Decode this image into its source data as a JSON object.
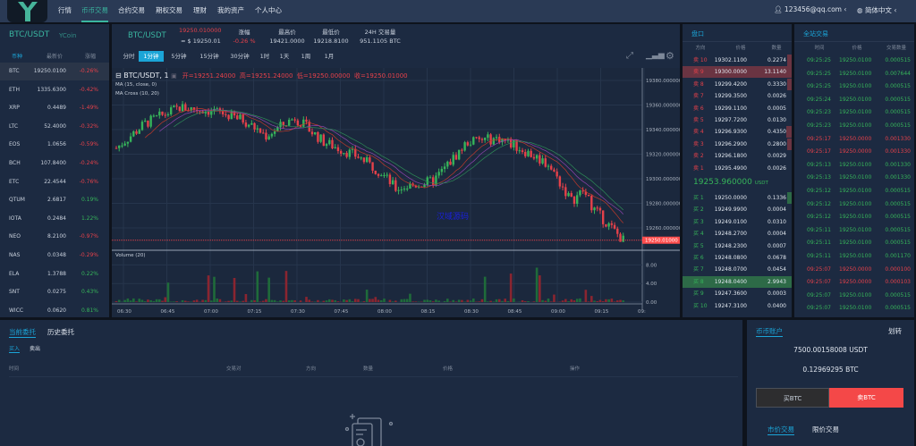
{
  "nav": {
    "logo_text": "YCoin",
    "items": [
      "行情",
      "币币交易",
      "合约交易",
      "期权交易",
      "理财",
      "我的资产",
      "个人中心"
    ],
    "active": 1,
    "user": "123456@qq.com",
    "language": "简体中文"
  },
  "market": {
    "title": "BTC/USDT",
    "headers": [
      "币种",
      "最新价",
      "涨幅"
    ],
    "rows": [
      [
        "BTC",
        "19250.0100",
        "-0.26%"
      ],
      [
        "ETH",
        "1335.6300",
        "-0.42%"
      ],
      [
        "XRP",
        "0.4489",
        "-1.49%"
      ],
      [
        "LTC",
        "52.4000",
        "-0.32%"
      ],
      [
        "EOS",
        "1.0656",
        "-0.59%"
      ],
      [
        "BCH",
        "107.8400",
        "-0.24%"
      ],
      [
        "ETC",
        "22.4544",
        "-0.76%"
      ],
      [
        "QTUM",
        "2.6817",
        "0.19%"
      ],
      [
        "IOTA",
        "0.2484",
        "1.22%"
      ],
      [
        "NEO",
        "8.2100",
        "-0.97%"
      ],
      [
        "NAS",
        "0.0348",
        "-0.29%"
      ],
      [
        "ELA",
        "1.3788",
        "0.22%"
      ],
      [
        "SNT",
        "0.0275",
        "0.43%"
      ],
      [
        "WICC",
        "0.0620",
        "0.81%"
      ]
    ]
  },
  "ticker": {
    "pair": "BTC/USDT",
    "price": "19250.010000",
    "usd": "≈ $ 19250.01",
    "change_label": "涨幅",
    "change": "-0.26 %",
    "high_label": "最高价",
    "high": "19421.0000",
    "low_label": "最低价",
    "low": "19218.8100",
    "vol_label": "24H 交易量",
    "vol": "951.1105 BTC"
  },
  "intervals": {
    "items": [
      "分时",
      "1分钟",
      "5分钟",
      "15分钟",
      "30分钟",
      "1时",
      "1天",
      "1周",
      "1月"
    ],
    "active": 1
  },
  "chart": {
    "symbol": "BTC/USDT, 1",
    "ohlc": "开=19251.24000  高=19251.24000  低=19250.00000  收=19250.01000",
    "ma": "MA (15, close, 0)",
    "ma_cross": "MA Cross (10, 20)",
    "volume_label": "Volume (20)",
    "watermark": "汉域源码",
    "last_price": "19250.01000",
    "price_ticks": [
      "19380.000000",
      "19360.000000",
      "19340.000000",
      "19320.000000",
      "19300.000000",
      "19280.000000",
      "19260.000000"
    ],
    "volume_ticks": [
      "8.00",
      "4.00",
      "0.00"
    ],
    "time_ticks": [
      "06:30",
      "06:45",
      "07:00",
      "07:15",
      "07:30",
      "07:45",
      "08:00",
      "08:15",
      "08:30",
      "08:45",
      "09:00",
      "09:15",
      "09:"
    ],
    "colors": {
      "up": "#36b45a",
      "down": "#e5414a"
    }
  },
  "orderbook": {
    "title": "盘口",
    "headers": [
      "方向",
      "价格",
      "数量"
    ],
    "asks": [
      [
        "卖 10",
        "19302.1100",
        "0.2274"
      ],
      [
        "卖 9",
        "19300.0000",
        "13.1140"
      ],
      [
        "卖 8",
        "19299.4200",
        "0.3330"
      ],
      [
        "卖 7",
        "19299.3500",
        "0.0026"
      ],
      [
        "卖 6",
        "19299.1100",
        "0.0005"
      ],
      [
        "卖 5",
        "19297.7200",
        "0.0130"
      ],
      [
        "卖 4",
        "19296.9300",
        "0.4350"
      ],
      [
        "卖 3",
        "19296.2900",
        "0.2800"
      ],
      [
        "卖 2",
        "19296.1800",
        "0.0029"
      ],
      [
        "卖 1",
        "19295.4900",
        "0.0026"
      ]
    ],
    "mid": "19253.960000",
    "mid_unit": "USDT",
    "bids": [
      [
        "买 1",
        "19250.0000",
        "0.1336"
      ],
      [
        "买 2",
        "19249.9900",
        "0.0004"
      ],
      [
        "买 3",
        "19249.0100",
        "0.0310"
      ],
      [
        "买 4",
        "19248.2700",
        "0.0004"
      ],
      [
        "买 5",
        "19248.2300",
        "0.0007"
      ],
      [
        "买 6",
        "19248.0800",
        "0.0678"
      ],
      [
        "买 7",
        "19248.0700",
        "0.0454"
      ],
      [
        "买 8",
        "19248.0400",
        "2.9943"
      ],
      [
        "买 9",
        "19247.3600",
        "0.0003"
      ],
      [
        "买 10",
        "19247.3100",
        "0.0400"
      ]
    ]
  },
  "trades": {
    "title": "全站交易",
    "headers": [
      "时间",
      "价格",
      "交易数量"
    ],
    "rows": [
      [
        "09:25:25",
        "19250.0100",
        "0.000515",
        "buy"
      ],
      [
        "09:25:25",
        "19250.0100",
        "0.007644",
        "buy"
      ],
      [
        "09:25:25",
        "19250.0100",
        "0.000515",
        "buy"
      ],
      [
        "09:25:24",
        "19250.0100",
        "0.000515",
        "buy"
      ],
      [
        "09:25:23",
        "19250.0100",
        "0.000515",
        "buy"
      ],
      [
        "09:25:23",
        "19250.0100",
        "0.000515",
        "buy"
      ],
      [
        "09:25:17",
        "19250.0000",
        "0.001330",
        "sell"
      ],
      [
        "09:25:17",
        "19250.0000",
        "0.001330",
        "sell"
      ],
      [
        "09:25:13",
        "19250.0100",
        "0.001330",
        "buy"
      ],
      [
        "09:25:13",
        "19250.0100",
        "0.001330",
        "buy"
      ],
      [
        "09:25:12",
        "19250.0100",
        "0.000515",
        "buy"
      ],
      [
        "09:25:12",
        "19250.0100",
        "0.000515",
        "buy"
      ],
      [
        "09:25:12",
        "19250.0100",
        "0.000515",
        "buy"
      ],
      [
        "09:25:11",
        "19250.0100",
        "0.000515",
        "buy"
      ],
      [
        "09:25:11",
        "19250.0100",
        "0.000515",
        "buy"
      ],
      [
        "09:25:11",
        "19250.0100",
        "0.001170",
        "buy"
      ],
      [
        "09:25:07",
        "19250.0000",
        "0.000100",
        "sell"
      ],
      [
        "09:25:07",
        "19250.0000",
        "0.000103",
        "sell"
      ],
      [
        "09:25:07",
        "19250.0100",
        "0.000515",
        "buy"
      ],
      [
        "09:25:07",
        "19250.0100",
        "0.000515",
        "buy"
      ]
    ]
  },
  "orders": {
    "tabs": [
      "当前委托",
      "历史委托"
    ],
    "subtabs": [
      "买入",
      "卖出"
    ],
    "headers": [
      "时间",
      "交易对",
      "方向",
      "数量",
      "价格",
      "操作"
    ]
  },
  "account": {
    "title": "币币账户",
    "transfer": "划转",
    "usdt": "7500.00158008 USDT",
    "btc": "0.12969295 BTC",
    "buy": "买BTC",
    "sell": "卖BTC",
    "tabs": [
      "市价交易",
      "限价交易"
    ]
  }
}
